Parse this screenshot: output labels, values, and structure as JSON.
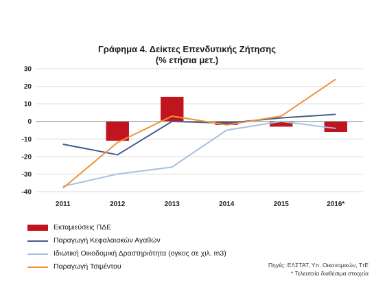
{
  "title_line1": "Γράφημα 4. Δείκτες Επενδυτικής Ζήτησης",
  "title_line2": "(% ετήσια μετ.)",
  "source": "Πηγές: ΕΛΣΤΑΤ, Υπ. Οικονομικών, ΤτΕ",
  "footnote": "* Τελευταία διαθέσιμα στοιχεία",
  "colors": {
    "bar": "#c0141e",
    "line1": "#3e5e8e",
    "line2": "#a9bfe0",
    "line3": "#f0913a",
    "grid": "#d9d9d9",
    "axis": "#888888"
  },
  "chart_data": {
    "type": "bar",
    "title": "Γράφημα 4. Δείκτες Επενδυτικής Ζήτησης (% ετήσια μετ.)",
    "categories": [
      "2011",
      "2012",
      "2013",
      "2014",
      "2015",
      "2016*"
    ],
    "yticks": [
      30,
      20,
      10,
      0,
      -10,
      -20,
      -30,
      -40
    ],
    "ylim": [
      -40,
      30
    ],
    "grid": true,
    "legend_position": "bottom",
    "series": [
      {
        "name": "Εκταμιεύσεις ΠΔΕ",
        "kind": "bar",
        "color": "#c0141e",
        "values": [
          null,
          -11,
          14,
          -2,
          -3,
          -6
        ]
      },
      {
        "name": "Παραγωγή Κεφαλαιακών Αγαθών",
        "kind": "line",
        "color": "#3e5e8e",
        "values": [
          -13,
          -19,
          0,
          -1,
          2,
          4
        ]
      },
      {
        "name": "Ιδιωτική Οικοδομική Δραστηριότητα (ογκος σε χιλ. m3)",
        "kind": "line",
        "color": "#a9bfe0",
        "values": [
          -37,
          -30,
          -26,
          -5,
          0,
          -4
        ]
      },
      {
        "name": "Παραγωγή Τσιμέντου",
        "kind": "line",
        "color": "#f0913a",
        "values": [
          -38,
          -12,
          3,
          -2,
          3,
          24
        ]
      }
    ]
  }
}
